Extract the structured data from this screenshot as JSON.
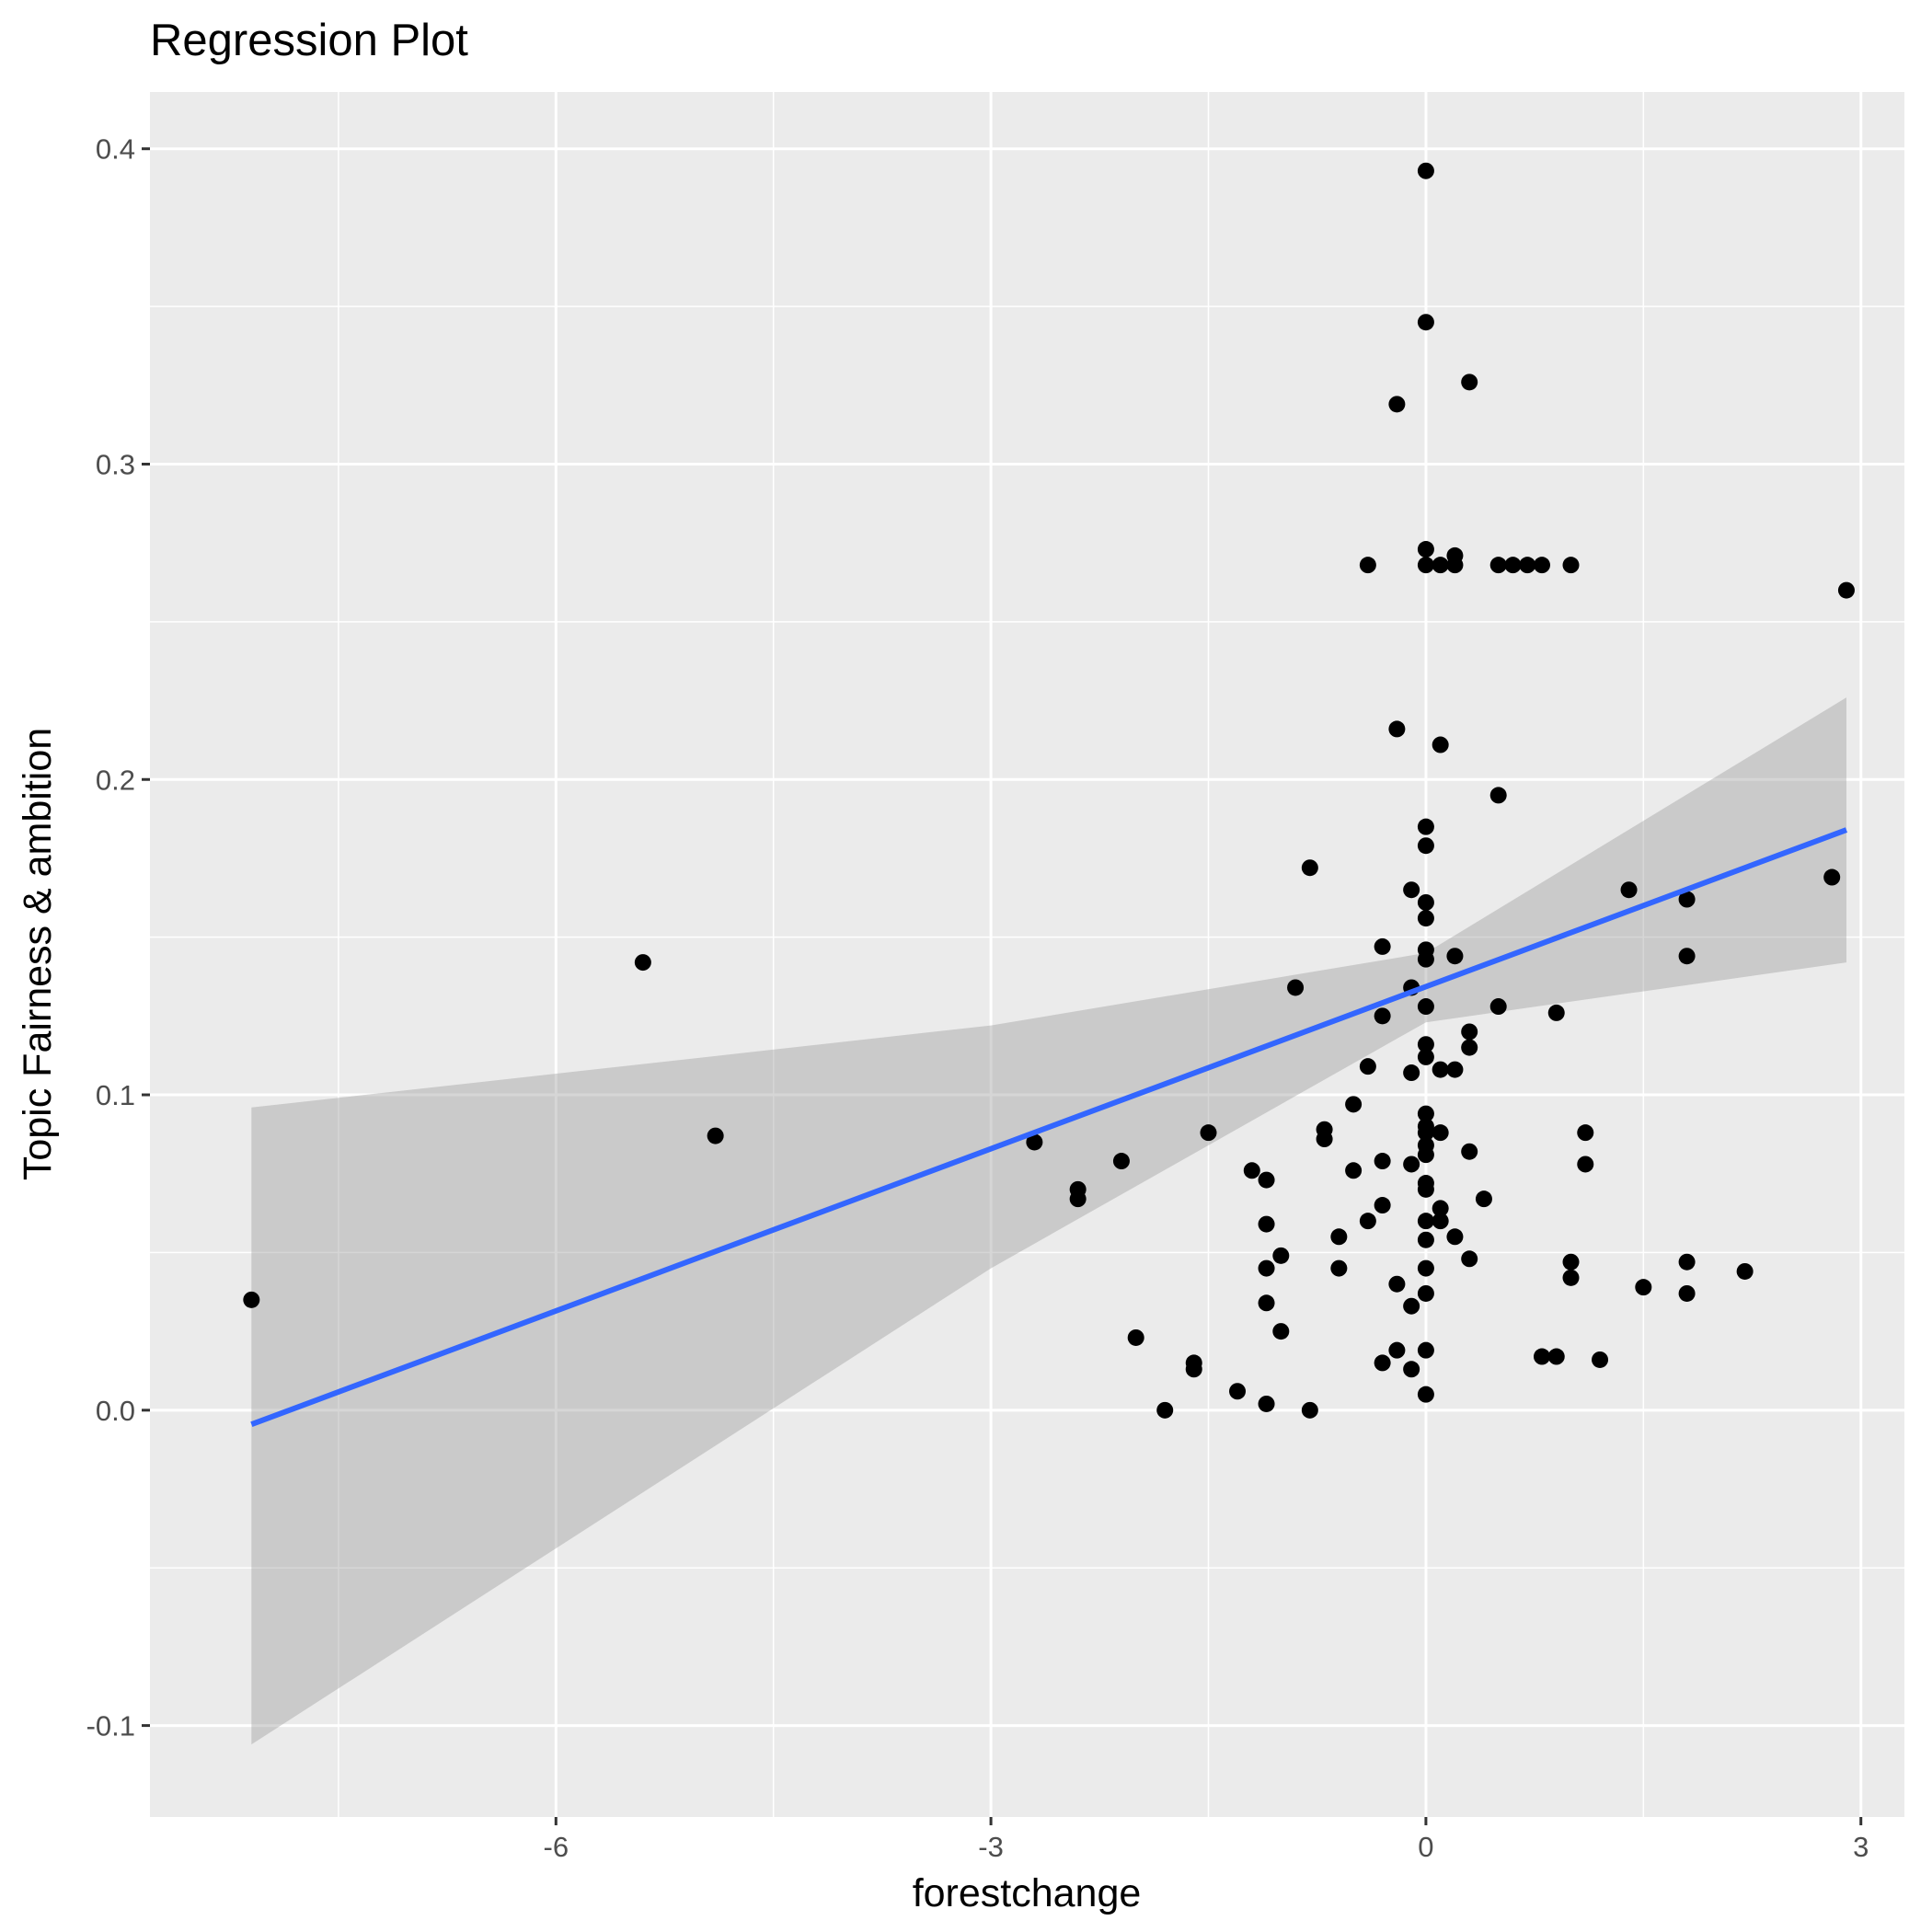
{
  "chart_data": {
    "type": "scatter",
    "title": "Regression Plot",
    "xlabel": "forestchange",
    "ylabel": "Topic Fairness & ambition",
    "xlim": [
      -8.8,
      3.3
    ],
    "ylim": [
      -0.129,
      0.418
    ],
    "xticks": [
      -6,
      -3,
      0,
      3
    ],
    "xtick_labels": [
      "-6",
      "-3",
      "0",
      "3"
    ],
    "yticks": [
      -0.1,
      0.0,
      0.1,
      0.2,
      0.3,
      0.4
    ],
    "ytick_labels": [
      "-0.1",
      "0.0",
      "0.1",
      "0.2",
      "0.3",
      "0.4"
    ],
    "x_minor_gridlines": [
      -7.5,
      -4.5,
      -1.5,
      1.5
    ],
    "y_minor_gridlines": [
      -0.05,
      0.05,
      0.15,
      0.25,
      0.35
    ],
    "grid": true,
    "points_color": "#000000",
    "points": [
      [
        -8.1,
        0.035
      ],
      [
        -5.4,
        0.142
      ],
      [
        -4.9,
        0.087
      ],
      [
        -2.7,
        0.085
      ],
      [
        -2.4,
        0.07
      ],
      [
        -2.4,
        0.067
      ],
      [
        -2.1,
        0.079
      ],
      [
        -2.0,
        0.023
      ],
      [
        -1.8,
        0.0
      ],
      [
        -1.6,
        0.015
      ],
      [
        -1.6,
        0.013
      ],
      [
        -1.5,
        0.088
      ],
      [
        -1.3,
        0.006
      ],
      [
        -1.2,
        0.076
      ],
      [
        -1.1,
        0.073
      ],
      [
        -1.1,
        0.059
      ],
      [
        -1.1,
        0.045
      ],
      [
        -1.1,
        0.034
      ],
      [
        -1.1,
        0.002
      ],
      [
        -1.0,
        0.049
      ],
      [
        -1.0,
        0.025
      ],
      [
        -0.9,
        0.134
      ],
      [
        -0.8,
        0.172
      ],
      [
        -0.8,
        0.0
      ],
      [
        -0.7,
        0.089
      ],
      [
        -0.7,
        0.086
      ],
      [
        -0.6,
        0.055
      ],
      [
        -0.6,
        0.045
      ],
      [
        -0.5,
        0.097
      ],
      [
        -0.5,
        0.076
      ],
      [
        -0.4,
        0.268
      ],
      [
        -0.4,
        0.109
      ],
      [
        -0.4,
        0.06
      ],
      [
        -0.3,
        0.147
      ],
      [
        -0.3,
        0.125
      ],
      [
        -0.3,
        0.079
      ],
      [
        -0.3,
        0.065
      ],
      [
        -0.3,
        0.015
      ],
      [
        -0.2,
        0.319
      ],
      [
        -0.2,
        0.216
      ],
      [
        -0.2,
        0.04
      ],
      [
        -0.2,
        0.019
      ],
      [
        -0.1,
        0.165
      ],
      [
        -0.1,
        0.134
      ],
      [
        -0.1,
        0.107
      ],
      [
        -0.1,
        0.078
      ],
      [
        -0.1,
        0.033
      ],
      [
        -0.1,
        0.013
      ],
      [
        0.0,
        0.393
      ],
      [
        0.0,
        0.345
      ],
      [
        0.0,
        0.273
      ],
      [
        0.0,
        0.268
      ],
      [
        0.0,
        0.185
      ],
      [
        0.0,
        0.179
      ],
      [
        0.0,
        0.161
      ],
      [
        0.0,
        0.156
      ],
      [
        0.0,
        0.146
      ],
      [
        0.0,
        0.143
      ],
      [
        0.0,
        0.128
      ],
      [
        0.0,
        0.116
      ],
      [
        0.0,
        0.112
      ],
      [
        0.0,
        0.094
      ],
      [
        0.0,
        0.09
      ],
      [
        0.0,
        0.088
      ],
      [
        0.0,
        0.084
      ],
      [
        0.0,
        0.081
      ],
      [
        0.0,
        0.072
      ],
      [
        0.0,
        0.07
      ],
      [
        0.0,
        0.06
      ],
      [
        0.0,
        0.054
      ],
      [
        0.0,
        0.045
      ],
      [
        0.0,
        0.037
      ],
      [
        0.0,
        0.019
      ],
      [
        0.0,
        0.005
      ],
      [
        0.1,
        0.268
      ],
      [
        0.1,
        0.211
      ],
      [
        0.1,
        0.108
      ],
      [
        0.1,
        0.088
      ],
      [
        0.1,
        0.064
      ],
      [
        0.1,
        0.06
      ],
      [
        0.2,
        0.271
      ],
      [
        0.2,
        0.268
      ],
      [
        0.2,
        0.144
      ],
      [
        0.2,
        0.108
      ],
      [
        0.2,
        0.055
      ],
      [
        0.3,
        0.326
      ],
      [
        0.3,
        0.12
      ],
      [
        0.3,
        0.115
      ],
      [
        0.3,
        0.082
      ],
      [
        0.3,
        0.048
      ],
      [
        0.4,
        0.067
      ],
      [
        0.5,
        0.268
      ],
      [
        0.5,
        0.195
      ],
      [
        0.5,
        0.128
      ],
      [
        0.6,
        0.268
      ],
      [
        0.7,
        0.268
      ],
      [
        0.8,
        0.268
      ],
      [
        0.8,
        0.017
      ],
      [
        0.9,
        0.126
      ],
      [
        0.9,
        0.017
      ],
      [
        1.0,
        0.268
      ],
      [
        1.0,
        0.047
      ],
      [
        1.0,
        0.042
      ],
      [
        1.1,
        0.088
      ],
      [
        1.1,
        0.078
      ],
      [
        1.2,
        0.016
      ],
      [
        1.4,
        0.165
      ],
      [
        1.5,
        0.039
      ],
      [
        1.8,
        0.162
      ],
      [
        1.8,
        0.144
      ],
      [
        1.8,
        0.047
      ],
      [
        1.8,
        0.037
      ],
      [
        2.2,
        0.044
      ],
      [
        2.8,
        0.169
      ],
      [
        2.9,
        0.26
      ]
    ],
    "regression": {
      "x": [
        -8.1,
        2.9
      ],
      "y": [
        -0.0045,
        0.184
      ],
      "color": "#3366ff",
      "confidence_band": {
        "x": [
          -8.1,
          -3.0,
          0.0,
          2.9
        ],
        "upper": [
          0.096,
          0.122,
          0.145,
          0.226
        ],
        "lower": [
          -0.106,
          0.045,
          0.123,
          0.142
        ],
        "color": "#999999"
      }
    }
  }
}
